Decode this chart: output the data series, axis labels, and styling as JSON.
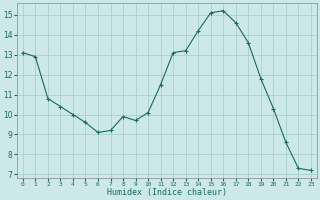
{
  "x": [
    0,
    1,
    2,
    3,
    4,
    5,
    6,
    7,
    8,
    9,
    10,
    11,
    12,
    13,
    14,
    15,
    16,
    17,
    18,
    19,
    20,
    21,
    22,
    23
  ],
  "y": [
    13.1,
    12.9,
    10.8,
    10.4,
    10.0,
    9.6,
    9.1,
    9.2,
    9.9,
    9.7,
    10.1,
    11.5,
    13.1,
    13.2,
    14.2,
    15.1,
    15.2,
    14.6,
    13.6,
    11.8,
    10.3,
    8.6,
    7.3,
    7.2
  ],
  "line_color": "#1a6b5a",
  "marker": "+",
  "bg_color": "#cce8e8",
  "grid_color": "#aacfcf",
  "xlabel": "Humidex (Indice chaleur)",
  "xlim": [
    -0.5,
    23.5
  ],
  "ylim": [
    6.8,
    15.6
  ],
  "yticks": [
    7,
    8,
    9,
    10,
    11,
    12,
    13,
    14,
    15
  ],
  "xtick_labels": [
    "0",
    "1",
    "2",
    "3",
    "4",
    "5",
    "6",
    "7",
    "8",
    "9",
    "10",
    "11",
    "12",
    "13",
    "14",
    "15",
    "16",
    "17",
    "18",
    "19",
    "20",
    "21",
    "22",
    "23"
  ]
}
